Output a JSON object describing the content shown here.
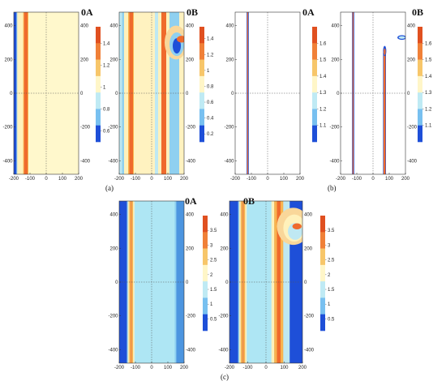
{
  "panel_letters": [
    "(a)",
    "(b)",
    "(c)"
  ],
  "colorscale": [
    "#1e4fd8",
    "#78c0f0",
    "#bfeaf4",
    "#fff6c8",
    "#f7c66a",
    "#f08038",
    "#e05020"
  ],
  "chart_data": [
    {
      "type": "heatmap",
      "group": "(a)",
      "title": "0A",
      "x_ticks": [
        "-200",
        "-100",
        "0",
        "100",
        "200"
      ],
      "xlim": [
        -200,
        200
      ],
      "y_ticks": [
        "400",
        "200",
        "0",
        "-200",
        "-400"
      ],
      "ylim": [
        -480,
        480
      ],
      "right_y_ticks": [
        "400",
        "200",
        "0",
        "-200",
        "-400"
      ],
      "background": "#fff8cc",
      "x_bands": [
        {
          "x0": -200,
          "x1": -183,
          "color": "#1e4fd8"
        },
        {
          "x0": -183,
          "x1": -178,
          "color": "#8fd0f0"
        },
        {
          "x0": -178,
          "x1": -142,
          "color": "#fff1bb"
        },
        {
          "x0": -142,
          "x1": -137,
          "color": "#f8b34f"
        },
        {
          "x0": -137,
          "x1": -115,
          "color": "#ef6a2c"
        },
        {
          "x0": -115,
          "x1": -110,
          "color": "#f8b34f"
        }
      ],
      "blobs": [],
      "colorbar": {
        "ticks": [
          "1.4",
          "1.2",
          "1",
          "0.8",
          "0.6"
        ],
        "range": [
          0.5,
          1.55
        ]
      }
    },
    {
      "type": "heatmap",
      "group": "(a)",
      "title": "0B",
      "x_ticks": [
        "-200",
        "-100",
        "0",
        "100",
        "200"
      ],
      "xlim": [
        -200,
        200
      ],
      "y_ticks": [
        "400",
        "200",
        "0",
        "-200",
        "-400"
      ],
      "ylim": [
        -480,
        480
      ],
      "right_y_ticks": [
        "400",
        "200",
        "0",
        "-200",
        "-400"
      ],
      "background": "#fff2c0",
      "x_bands": [
        {
          "x0": -200,
          "x1": -183,
          "color": "#bfe8f2"
        },
        {
          "x0": -183,
          "x1": -170,
          "color": "#8fd0f0"
        },
        {
          "x0": -170,
          "x1": -145,
          "color": "#fff1bb"
        },
        {
          "x0": -145,
          "x1": -138,
          "color": "#f8b34f"
        },
        {
          "x0": -138,
          "x1": -115,
          "color": "#ef6a2c"
        },
        {
          "x0": -115,
          "x1": -110,
          "color": "#f8b34f"
        },
        {
          "x0": 20,
          "x1": 40,
          "color": "#bfe8f2"
        },
        {
          "x0": 40,
          "x1": 60,
          "color": "#fff1bb"
        },
        {
          "x0": 60,
          "x1": 90,
          "color": "#ef6a2c"
        },
        {
          "x0": 90,
          "x1": 110,
          "color": "#fff1bb"
        },
        {
          "x0": 110,
          "x1": 170,
          "color": "#8fd0f0"
        }
      ],
      "blobs": [
        {
          "cx": 150,
          "cy": 300,
          "rx": 70,
          "ry": 100,
          "color": "#f9d79a"
        },
        {
          "cx": 155,
          "cy": 290,
          "rx": 45,
          "ry": 70,
          "color": "#8fd0f0"
        },
        {
          "cx": 155,
          "cy": 280,
          "rx": 25,
          "ry": 45,
          "color": "#1e4fd8"
        },
        {
          "cx": 185,
          "cy": 320,
          "rx": 30,
          "ry": 20,
          "color": "#ef6a2c"
        }
      ],
      "colorbar": {
        "ticks": [
          "1.4",
          "1.2",
          "1",
          "0.8",
          "0.6",
          "0.4",
          "0.2"
        ],
        "range": [
          0.1,
          1.55
        ]
      }
    },
    {
      "type": "heatmap",
      "group": "(b)",
      "title": "0A",
      "x_ticks": [
        "-200",
        "-100",
        "0",
        "100",
        "200"
      ],
      "xlim": [
        -200,
        200
      ],
      "y_ticks": [
        "400",
        "200",
        "0",
        "-200",
        "-400"
      ],
      "ylim": [
        -480,
        480
      ],
      "right_y_ticks": [],
      "background": "#ffffff",
      "x_bands": [
        {
          "x0": -130,
          "x1": -126,
          "color": "#1e4fd8"
        },
        {
          "x0": -126,
          "x1": -120,
          "color": "#ef6a2c"
        },
        {
          "x0": -120,
          "x1": -116,
          "color": "#1e4fd8"
        }
      ],
      "blobs": [],
      "colorbar": {
        "ticks": [
          "1.6",
          "1.5",
          "1.4",
          "1.3",
          "1.2",
          "1.1"
        ],
        "range": [
          1.0,
          1.7
        ]
      }
    },
    {
      "type": "heatmap",
      "group": "(b)",
      "title": "0B",
      "x_ticks": [
        "-200",
        "-100",
        "0",
        "100",
        "200"
      ],
      "xlim": [
        -200,
        200
      ],
      "y_ticks": [
        "400",
        "200",
        "0",
        "-200",
        "-400"
      ],
      "ylim": [
        -480,
        480
      ],
      "right_y_ticks": [
        "400",
        "200",
        "0",
        "-200",
        "-400"
      ],
      "background": "#ffffff",
      "x_bands": [
        {
          "x0": -130,
          "x1": -126,
          "color": "#1e4fd8"
        },
        {
          "x0": -126,
          "x1": -120,
          "color": "#ef6a2c"
        },
        {
          "x0": -120,
          "x1": -116,
          "color": "#1e4fd8"
        }
      ],
      "bars": [
        {
          "x0": 62,
          "x1": 80,
          "y0": -480,
          "y1": 240,
          "color": "#1e4fd8"
        },
        {
          "x0": 65,
          "x1": 77,
          "y0": -480,
          "y1": 230,
          "color": "#ef6a2c"
        }
      ],
      "blobs": [
        {
          "cx": 72,
          "cy": 250,
          "rx": 10,
          "ry": 30,
          "color": "#1e4fd8"
        },
        {
          "cx": 72,
          "cy": 245,
          "rx": 6,
          "ry": 20,
          "color": "#ef6a2c"
        },
        {
          "cx": 178,
          "cy": 330,
          "rx": 28,
          "ry": 14,
          "color": "#1e4fd8"
        },
        {
          "cx": 178,
          "cy": 330,
          "rx": 20,
          "ry": 8,
          "color": "#bfeaf4"
        }
      ],
      "colorbar": {
        "ticks": [
          "1.6",
          "1.5",
          "1.4",
          "1.3",
          "1.2",
          "1.1"
        ],
        "range": [
          1.0,
          1.7
        ]
      }
    },
    {
      "type": "heatmap",
      "group": "(c)",
      "title": "0A",
      "x_ticks": [
        "-200",
        "-100",
        "0",
        "100",
        "200"
      ],
      "xlim": [
        -200,
        200
      ],
      "y_ticks": [
        "400",
        "200",
        "0",
        "-200",
        "-400"
      ],
      "ylim": [
        -480,
        480
      ],
      "right_y_ticks": [
        "400",
        "200",
        "0",
        "-200",
        "-400"
      ],
      "background": "#aee6f4",
      "x_bands": [
        {
          "x0": -200,
          "x1": -152,
          "color": "#1e4fd8"
        },
        {
          "x0": -152,
          "x1": -146,
          "color": "#8fd0f0"
        },
        {
          "x0": -146,
          "x1": -138,
          "color": "#f7e9b8"
        },
        {
          "x0": -138,
          "x1": -130,
          "color": "#f8b34f"
        },
        {
          "x0": -130,
          "x1": -122,
          "color": "#f08a40"
        },
        {
          "x0": -122,
          "x1": -114,
          "color": "#f8b34f"
        },
        {
          "x0": -114,
          "x1": -106,
          "color": "#fff1bb"
        },
        {
          "x0": 142,
          "x1": 152,
          "color": "#8fd0f0"
        },
        {
          "x0": 152,
          "x1": 200,
          "color": "#4c95e0"
        }
      ],
      "blobs": [],
      "colorbar": {
        "ticks": [
          "3.5",
          "3",
          "2.5",
          "2",
          "1.5",
          "1",
          "0.5"
        ],
        "range": [
          0.1,
          4.0
        ]
      }
    },
    {
      "type": "heatmap",
      "group": "(c)",
      "title": "0B",
      "x_ticks": [
        "-200",
        "-100",
        "0",
        "100",
        "200"
      ],
      "xlim": [
        -200,
        200
      ],
      "y_ticks": [
        "400",
        "200",
        "0",
        "-200",
        "-400"
      ],
      "ylim": [
        -480,
        480
      ],
      "right_y_ticks": [
        "400",
        "200",
        "0",
        "-200",
        "-400"
      ],
      "background": "#aee6f4",
      "x_bands": [
        {
          "x0": -200,
          "x1": -152,
          "color": "#1e4fd8"
        },
        {
          "x0": -152,
          "x1": -146,
          "color": "#8fd0f0"
        },
        {
          "x0": -146,
          "x1": -138,
          "color": "#f7e9b8"
        },
        {
          "x0": -138,
          "x1": -130,
          "color": "#f8b34f"
        },
        {
          "x0": -130,
          "x1": -122,
          "color": "#f08a40"
        },
        {
          "x0": -122,
          "x1": -114,
          "color": "#f8b34f"
        },
        {
          "x0": -114,
          "x1": -106,
          "color": "#fff1bb"
        },
        {
          "x0": 30,
          "x1": 45,
          "color": "#fff1bb"
        },
        {
          "x0": 45,
          "x1": 60,
          "color": "#f8b34f"
        },
        {
          "x0": 60,
          "x1": 80,
          "color": "#ef6a2c"
        },
        {
          "x0": 80,
          "x1": 95,
          "color": "#f8b34f"
        },
        {
          "x0": 95,
          "x1": 130,
          "color": "#bfe8f2"
        },
        {
          "x0": 130,
          "x1": 200,
          "color": "#1e4fd8"
        }
      ],
      "blobs": [
        {
          "cx": 150,
          "cy": 330,
          "rx": 90,
          "ry": 110,
          "color": "#f9d79a"
        },
        {
          "cx": 155,
          "cy": 320,
          "rx": 60,
          "ry": 80,
          "color": "#fff1bb"
        },
        {
          "cx": 160,
          "cy": 300,
          "rx": 40,
          "ry": 50,
          "color": "#bfe8f2"
        },
        {
          "cx": 170,
          "cy": 330,
          "rx": 25,
          "ry": 18,
          "color": "#ef6a2c"
        }
      ],
      "colorbar": {
        "ticks": [
          "3.5",
          "3",
          "2.5",
          "2",
          "1.5",
          "1",
          "0.5"
        ],
        "range": [
          0.1,
          4.0
        ]
      }
    }
  ]
}
